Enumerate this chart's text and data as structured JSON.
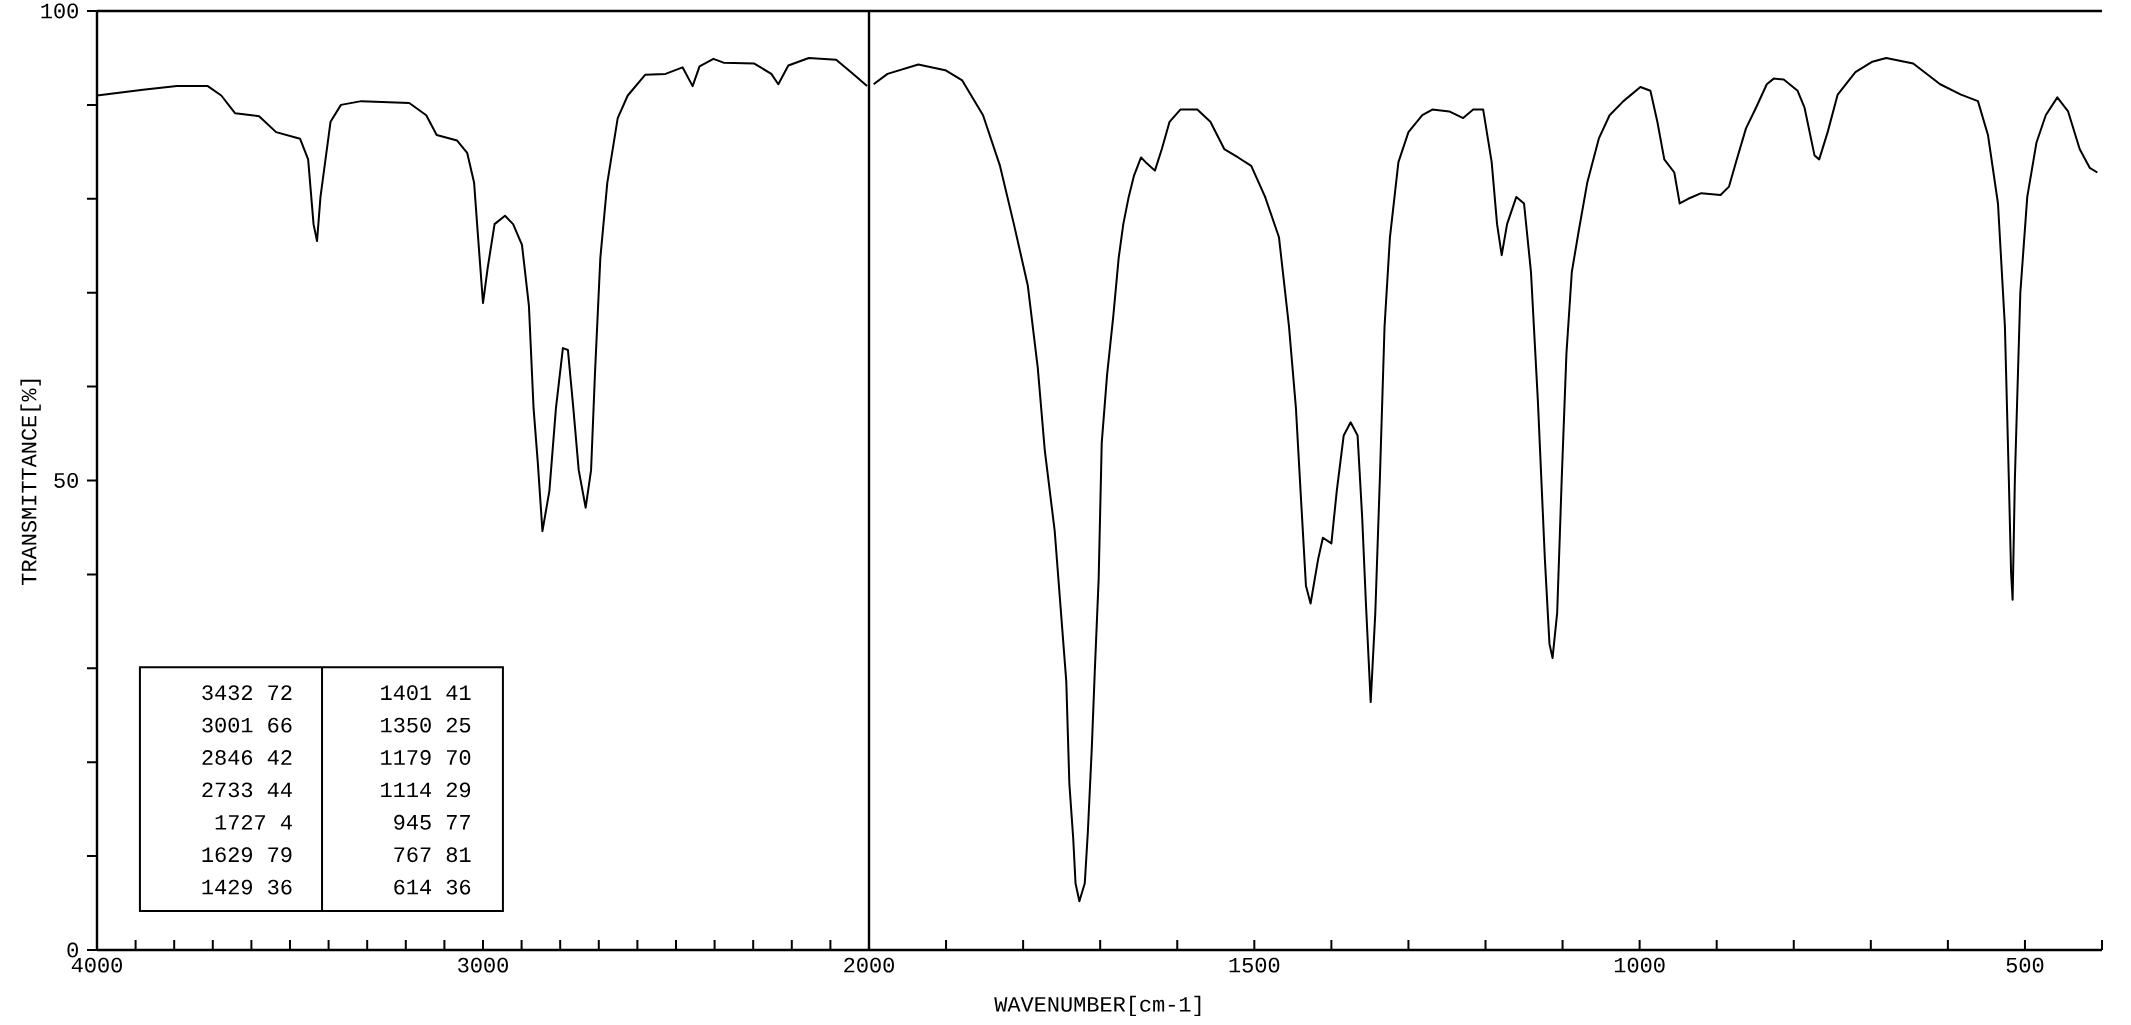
{
  "chart_data": [
    {
      "type": "line",
      "ylabel": "TRANSMITTANCE[%]",
      "color": "#000000",
      "xlim": [
        4000,
        2000
      ],
      "ylim": [
        0,
        100
      ],
      "xticks": [
        4000,
        {
          "value": 3900,
          "label": null
        },
        {
          "value": 3800,
          "label": null
        },
        {
          "value": 3700,
          "label": null
        },
        {
          "value": 3600,
          "label": null
        },
        {
          "value": 3500,
          "label": null
        },
        {
          "value": 3400,
          "label": null
        },
        {
          "value": 3300,
          "label": null
        },
        {
          "value": 3200,
          "label": null
        },
        {
          "value": 3100,
          "label": null
        },
        3000,
        {
          "value": 2900,
          "label": null
        },
        {
          "value": 2800,
          "label": null
        },
        {
          "value": 2700,
          "label": null
        },
        {
          "value": 2600,
          "label": null
        },
        {
          "value": 2500,
          "label": null
        },
        {
          "value": 2400,
          "label": null
        },
        {
          "value": 2300,
          "label": null
        },
        {
          "value": 2200,
          "label": null
        },
        {
          "value": 2100,
          "label": null
        }
      ],
      "yticks": [
        0,
        {
          "value": 10,
          "label": null
        },
        {
          "value": 20,
          "label": null
        },
        {
          "value": 30,
          "label": null
        },
        {
          "value": 40,
          "label": null
        },
        50,
        {
          "value": 60,
          "label": null
        },
        {
          "value": 70,
          "label": null
        },
        {
          "value": 80,
          "label": null
        },
        {
          "value": 90,
          "label": null
        },
        100
      ],
      "annotations": [
        "3432 72",
        "3001 66",
        "2846 42",
        "2733 44",
        "1727 4",
        "1629 79",
        "1429 36",
        "1401 41",
        "1350 25",
        "1179 70",
        "1114 29",
        "945 77",
        "767 81",
        "614 36"
      ],
      "x": [
        4000,
        3881,
        3793,
        3713,
        3678,
        3642,
        3580,
        3536,
        3474,
        3453,
        3439,
        3430,
        3421,
        3395,
        3368,
        3315,
        3191,
        3147,
        3120,
        3067,
        3041,
        3023,
        3014,
        3000,
        2988,
        2970,
        2943,
        2922,
        2899,
        2881,
        2869,
        2858,
        2846,
        2828,
        2811,
        2793,
        2780,
        2766,
        2752,
        2734,
        2720,
        2710,
        2696,
        2678,
        2651,
        2625,
        2580,
        2527,
        2483,
        2457,
        2439,
        2403,
        2377,
        2297,
        2253,
        2235,
        2209,
        2156,
        2085,
        2041,
        2005
      ],
      "values": [
        91.0,
        91.6,
        92.0,
        92.0,
        91.0,
        89.1,
        88.8,
        87.1,
        86.4,
        84.2,
        77.3,
        75.5,
        80.2,
        88.2,
        90.0,
        90.4,
        90.2,
        88.9,
        86.8,
        86.2,
        84.9,
        81.7,
        76.6,
        68.9,
        72.6,
        77.3,
        78.2,
        77.3,
        75.1,
        68.6,
        57.7,
        51.9,
        44.6,
        48.9,
        57.7,
        64.1,
        63.9,
        57.7,
        51.1,
        47.1,
        51.1,
        61.3,
        73.7,
        81.7,
        88.6,
        91.0,
        93.2,
        93.3,
        94.0,
        92.0,
        94.1,
        94.9,
        94.5,
        94.4,
        93.3,
        92.2,
        94.2,
        95.0,
        94.8,
        93.3,
        92.0
      ]
    },
    {
      "type": "line",
      "xlabel": "WAVENUMBER[cm-1]",
      "color": "#000000",
      "xlim": [
        2000,
        400
      ],
      "ylim": [
        0,
        100
      ],
      "tick_labels": "x",
      "xticks": [
        2000,
        {
          "value": 1900,
          "label": null
        },
        {
          "value": 1800,
          "label": null
        },
        {
          "value": 1700,
          "label": null
        },
        {
          "value": 1600,
          "label": null
        },
        1500,
        {
          "value": 1400,
          "label": null
        },
        {
          "value": 1300,
          "label": null
        },
        {
          "value": 1200,
          "label": null
        },
        {
          "value": 1100,
          "label": null
        },
        1000,
        {
          "value": 900,
          "label": null
        },
        {
          "value": 800,
          "label": null
        },
        {
          "value": 700,
          "label": null
        },
        {
          "value": 600,
          "label": null
        },
        500,
        {
          "value": 400,
          "label": null
        }
      ],
      "x": [
        1994,
        1976,
        1936,
        1901,
        1879,
        1852,
        1830,
        1812,
        1794,
        1781,
        1772,
        1759,
        1744,
        1740,
        1735,
        1732,
        1727,
        1720,
        1716,
        1711,
        1707,
        1702,
        1698,
        1691,
        1683,
        1676,
        1670,
        1663,
        1656,
        1647,
        1641,
        1629,
        1620,
        1610,
        1596,
        1574,
        1557,
        1539,
        1521,
        1504,
        1486,
        1468,
        1455,
        1446,
        1440,
        1433,
        1427,
        1417,
        1411,
        1400,
        1393,
        1384,
        1375,
        1366,
        1360,
        1355,
        1349,
        1343,
        1337,
        1331,
        1324,
        1313,
        1300,
        1282,
        1269,
        1247,
        1229,
        1216,
        1203,
        1192,
        1185,
        1179,
        1172,
        1160,
        1150,
        1141,
        1132,
        1123,
        1117,
        1113,
        1107,
        1101,
        1095,
        1088,
        1079,
        1068,
        1053,
        1039,
        1021,
        999,
        986,
        977,
        968,
        955,
        948,
        937,
        920,
        895,
        884,
        875,
        862,
        849,
        835,
        826,
        813,
        795,
        786,
        773,
        767,
        756,
        743,
        720,
        698,
        680,
        645,
        610,
        583,
        561,
        548,
        535,
        526,
        521,
        518,
        516,
        513,
        506,
        497,
        485,
        473,
        458,
        444,
        429,
        416,
        406
      ],
      "values": [
        92.2,
        93.3,
        94.3,
        93.7,
        92.6,
        88.9,
        83.5,
        77.3,
        70.8,
        62.0,
        53.3,
        44.6,
        28.6,
        17.7,
        11.9,
        7.1,
        5.2,
        7.1,
        12.6,
        21.3,
        29.7,
        39.5,
        54.0,
        61.3,
        67.5,
        73.7,
        77.3,
        80.2,
        82.5,
        84.4,
        83.9,
        83.0,
        85.3,
        88.2,
        89.5,
        89.5,
        88.2,
        85.3,
        84.4,
        83.5,
        80.2,
        75.9,
        66.4,
        57.7,
        48.9,
        38.8,
        36.9,
        41.7,
        43.9,
        43.3,
        48.9,
        54.8,
        56.2,
        54.8,
        46.0,
        36.6,
        26.4,
        35.9,
        50.4,
        66.4,
        75.9,
        83.9,
        87.1,
        88.9,
        89.5,
        89.3,
        88.6,
        89.5,
        89.5,
        83.9,
        77.3,
        74.0,
        77.3,
        80.2,
        79.5,
        72.2,
        58.4,
        41.7,
        32.6,
        31.1,
        35.9,
        50.4,
        63.5,
        72.2,
        76.6,
        81.7,
        86.4,
        88.9,
        90.4,
        91.9,
        91.5,
        88.2,
        84.2,
        82.8,
        79.5,
        80.0,
        80.6,
        80.4,
        81.3,
        83.9,
        87.5,
        89.7,
        92.2,
        92.8,
        92.7,
        91.5,
        89.7,
        84.6,
        84.2,
        87.1,
        91.1,
        93.5,
        94.6,
        95.0,
        94.4,
        92.2,
        91.1,
        90.4,
        86.8,
        79.5,
        66.4,
        50.4,
        40.2,
        37.3,
        50.4,
        70.0,
        80.2,
        86.0,
        88.9,
        90.8,
        89.3,
        85.3,
        83.3,
        82.8
      ]
    }
  ]
}
